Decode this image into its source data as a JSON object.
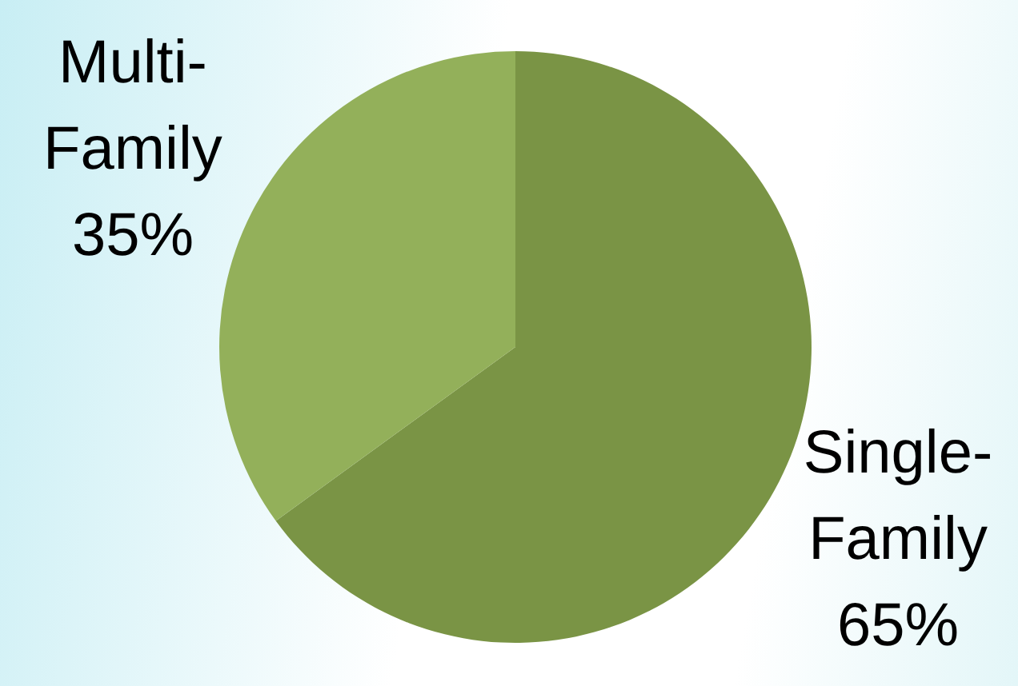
{
  "chart_data": {
    "type": "pie",
    "categories": [
      "Single-Family",
      "Multi-Family"
    ],
    "values": [
      65,
      35
    ],
    "colors": [
      "#7a9445",
      "#93b05a"
    ],
    "value_labels": [
      "65%",
      "35%"
    ],
    "legend": false
  }
}
